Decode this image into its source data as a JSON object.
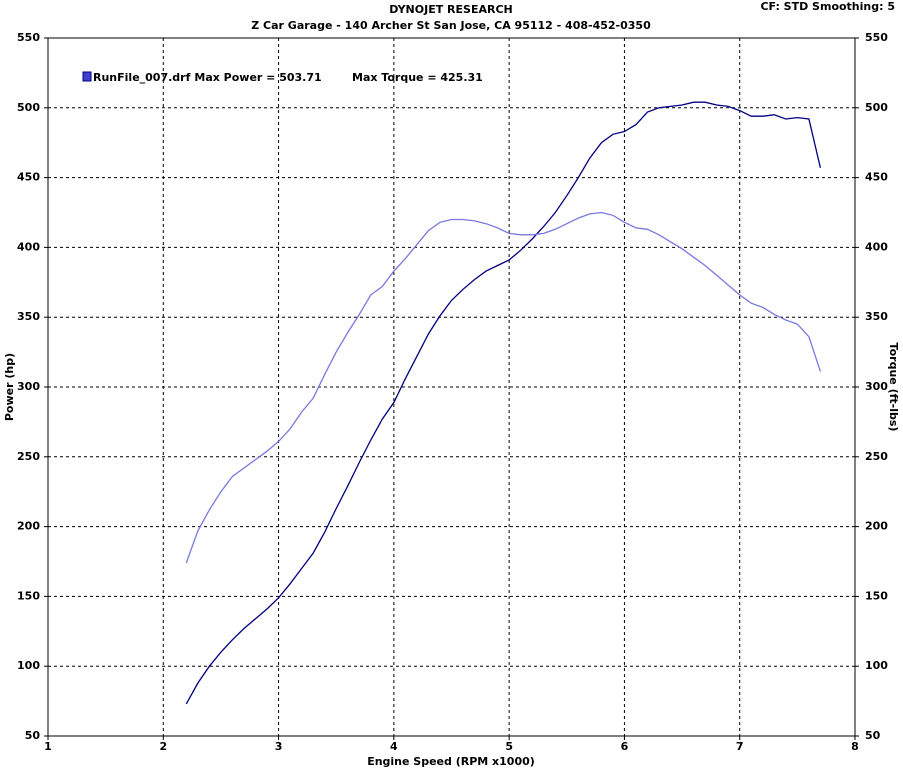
{
  "chart_data": {
    "type": "line",
    "title": "DYNOJET RESEARCH",
    "subtitle": "Z Car Garage - 140 Archer St San Jose, CA 95112 - 408-452-0350",
    "settings_text": "CF: STD  Smoothing: 5",
    "run_name": "RunFile_007.drf",
    "x_label": "Engine Speed (RPM x1000)",
    "y_label": "Power (hp)",
    "y2_label": "Torque (ft-lbs)",
    "x": [
      2.2,
      2.3,
      2.4,
      2.5,
      2.6,
      2.7,
      2.8,
      2.9,
      3.0,
      3.1,
      3.2,
      3.3,
      3.4,
      3.5,
      3.6,
      3.7,
      3.8,
      3.9,
      4.0,
      4.1,
      4.2,
      4.3,
      4.4,
      4.5,
      4.6,
      4.7,
      4.8,
      4.9,
      5.0,
      5.1,
      5.2,
      5.3,
      5.4,
      5.5,
      5.6,
      5.7,
      5.8,
      5.9,
      6.0,
      6.1,
      6.2,
      6.3,
      6.4,
      6.5,
      6.6,
      6.7,
      6.8,
      6.9,
      7.0,
      7.1,
      7.2,
      7.3,
      7.4,
      7.5,
      7.6,
      7.7
    ],
    "series": [
      {
        "name": "Max Power = 503.71",
        "color": "#000080",
        "values": [
          73,
          88,
          100,
          110,
          119,
          127,
          134,
          141,
          149,
          159,
          170,
          181,
          196,
          213,
          229,
          246,
          262,
          277,
          289,
          306,
          322,
          338,
          351,
          362,
          370,
          377,
          383,
          387,
          391,
          398,
          406,
          415,
          425,
          437,
          450,
          464,
          475,
          481,
          483,
          488,
          497,
          500,
          501,
          502,
          504,
          504,
          502,
          501,
          498,
          494,
          494,
          495,
          492,
          493,
          492,
          457
        ]
      },
      {
        "name": "Max Torque = 425.31",
        "color": "#7878e0",
        "axis": "y2",
        "values": [
          174,
          197,
          212,
          225,
          236,
          242,
          248,
          254,
          261,
          270,
          282,
          292,
          309,
          325,
          339,
          352,
          366,
          372,
          383,
          392,
          402,
          412,
          418,
          420,
          420,
          419,
          417,
          414,
          410,
          409,
          409,
          410,
          413,
          417,
          421,
          424,
          425,
          423,
          418,
          414,
          413,
          409,
          404,
          399,
          393,
          387,
          380,
          373,
          366,
          360,
          357,
          352,
          348,
          345,
          336,
          311
        ]
      }
    ],
    "xlim": [
      1,
      8
    ],
    "xticks": [
      1,
      2,
      3,
      4,
      5,
      6,
      7,
      8
    ],
    "ylim": [
      50,
      550
    ],
    "yticks": [
      50,
      100,
      150,
      200,
      250,
      300,
      350,
      400,
      450,
      500,
      550
    ],
    "y2lim": [
      50,
      550
    ],
    "y2ticks": [
      50,
      100,
      150,
      200,
      250,
      300,
      350,
      400,
      450,
      500,
      550
    ],
    "grid": true
  }
}
